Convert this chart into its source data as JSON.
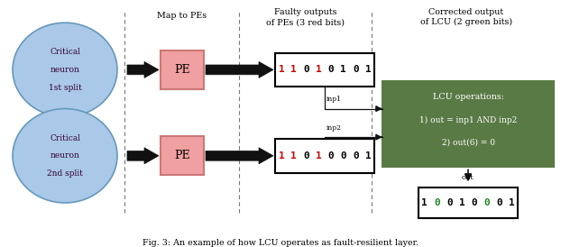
{
  "figsize": [
    6.22,
    2.74
  ],
  "dpi": 100,
  "bg_color": "#ffffff",
  "caption": "Fig. 3: An example of how LCU operates as fault-resilient layer.",
  "neuron_color": "#aac8e8",
  "neuron_edge_color": "#6699bb",
  "pe_color": "#f0a0a0",
  "pe_edge_color": "#cc7777",
  "pe_text": "PE",
  "label_map": "Map to PEs",
  "label_faulty": "Faulty outputs\nof PEs (3 red bits)",
  "label_corrected": "Corrected output\nof LCU (2 green bits)",
  "binary1_chars": [
    "1",
    "1",
    "0",
    "1",
    "0",
    "1",
    "0",
    "1"
  ],
  "binary1_colors": [
    "#cc0000",
    "#cc0000",
    "#000000",
    "#cc0000",
    "#000000",
    "#000000",
    "#000000",
    "#000000"
  ],
  "binary2_chars": [
    "1",
    "1",
    "0",
    "1",
    "0",
    "0",
    "0",
    "1"
  ],
  "binary2_colors": [
    "#cc0000",
    "#cc0000",
    "#000000",
    "#cc0000",
    "#000000",
    "#000000",
    "#000000",
    "#000000"
  ],
  "binary_out_chars": [
    "1",
    "0",
    "0",
    "1",
    "0",
    "0",
    "0",
    "1"
  ],
  "binary_out_colors": [
    "#000000",
    "#228822",
    "#000000",
    "#000000",
    "#000000",
    "#228822",
    "#000000",
    "#000000"
  ],
  "lcu_box_color": "#5a7a45",
  "lcu_box_edge": "#5a7a45",
  "lcu_text_color": "#ffffff",
  "lcu_line1": "LCU operations:",
  "lcu_line2": "1) out = inp1 AND inp2",
  "lcu_line3": "2) out(6) = 0",
  "dashed_color": "#777777",
  "arrow_color": "#111111",
  "line_color": "#111111"
}
